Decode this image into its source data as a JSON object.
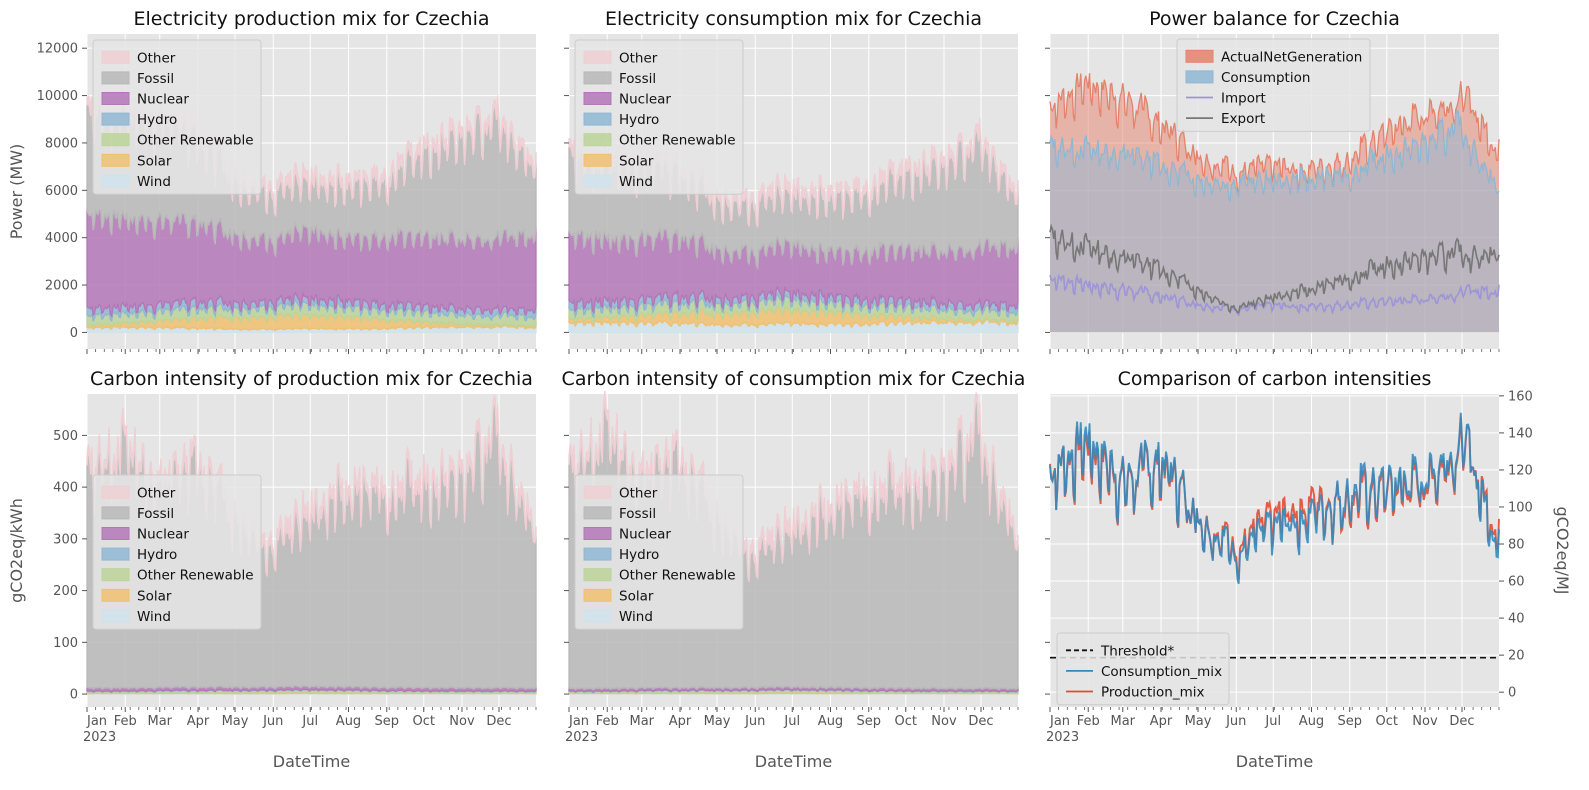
{
  "chart_data": [
    {
      "type": "area",
      "title": "Electricity production mix for Czechia",
      "xlabel": "",
      "ylabel": "Power (MW)",
      "ylim": [
        -700,
        12600
      ],
      "yticks": [
        0,
        2000,
        4000,
        6000,
        8000,
        10000,
        12000
      ],
      "grid": true,
      "legend_position": "top-left",
      "stacked": true,
      "x": [
        "2023-01",
        "2023-02",
        "2023-03",
        "2023-04",
        "2023-05",
        "2023-06",
        "2023-07",
        "2023-08",
        "2023-09",
        "2023-10",
        "2023-11",
        "2023-12",
        "2023-12-31"
      ],
      "legend": [
        "Other",
        "Fossil",
        "Nuclear",
        "Hydro",
        "Other Renewable",
        "Solar",
        "Wind"
      ],
      "series": [
        {
          "name": "Wind",
          "color": "#cfe3ec",
          "values": [
            200,
            220,
            200,
            170,
            150,
            140,
            150,
            160,
            170,
            210,
            230,
            240,
            220
          ]
        },
        {
          "name": "Solar",
          "color": "#f0c070",
          "values": [
            100,
            180,
            300,
            420,
            520,
            560,
            560,
            500,
            380,
            230,
            120,
            80,
            80
          ]
        },
        {
          "name": "Other Renewable",
          "color": "#bcd49a",
          "values": [
            400,
            400,
            400,
            400,
            400,
            400,
            400,
            400,
            400,
            400,
            400,
            400,
            400
          ]
        },
        {
          "name": "Hydro",
          "color": "#8fb7d3",
          "values": [
            300,
            280,
            280,
            280,
            250,
            250,
            250,
            250,
            250,
            250,
            250,
            250,
            300
          ]
        },
        {
          "name": "Nuclear",
          "color": "#b377b8",
          "values": [
            4000,
            3700,
            3500,
            3300,
            2900,
            2600,
            2800,
            2700,
            2850,
            2900,
            2950,
            3000,
            3200
          ]
        },
        {
          "name": "Fossil",
          "color": "#b8b8b8",
          "values": [
            4200,
            4300,
            4000,
            3400,
            2300,
            2000,
            2000,
            2100,
            2400,
            3500,
            4200,
            4800,
            2800
          ]
        },
        {
          "name": "Other",
          "color": "#efcfd3",
          "values": [
            300,
            300,
            300,
            300,
            300,
            300,
            300,
            300,
            300,
            300,
            300,
            300,
            300
          ]
        }
      ]
    },
    {
      "type": "area",
      "title": "Electricity consumption mix for Czechia",
      "xlabel": "",
      "ylabel": "",
      "ylim": [
        -700,
        12600
      ],
      "grid": true,
      "legend_position": "top-left",
      "stacked": true,
      "x": [
        "2023-01",
        "2023-02",
        "2023-03",
        "2023-04",
        "2023-05",
        "2023-06",
        "2023-07",
        "2023-08",
        "2023-09",
        "2023-10",
        "2023-11",
        "2023-12",
        "2023-12-31"
      ],
      "legend": [
        "Other",
        "Fossil",
        "Nuclear",
        "Hydro",
        "Other Renewable",
        "Solar",
        "Wind"
      ],
      "series": [
        {
          "name": "Wind",
          "color": "#cfe3ec",
          "values": [
            400,
            420,
            400,
            380,
            350,
            340,
            350,
            360,
            370,
            410,
            430,
            440,
            420
          ]
        },
        {
          "name": "Solar",
          "color": "#f0c070",
          "values": [
            150,
            220,
            320,
            420,
            520,
            560,
            560,
            500,
            380,
            250,
            150,
            100,
            100
          ]
        },
        {
          "name": "Other Renewable",
          "color": "#bcd49a",
          "values": [
            400,
            400,
            400,
            400,
            400,
            400,
            400,
            400,
            400,
            400,
            400,
            400,
            400
          ]
        },
        {
          "name": "Hydro",
          "color": "#8fb7d3",
          "values": [
            300,
            280,
            280,
            280,
            250,
            250,
            250,
            250,
            250,
            250,
            250,
            250,
            300
          ]
        },
        {
          "name": "Nuclear",
          "color": "#b377b8",
          "values": [
            2900,
            2600,
            2550,
            2500,
            2100,
            1900,
            2000,
            1900,
            2050,
            2150,
            2200,
            2400,
            2500
          ]
        },
        {
          "name": "Fossil",
          "color": "#b8b8b8",
          "values": [
            3350,
            3100,
            3000,
            2600,
            2100,
            2050,
            2100,
            2200,
            2500,
            3100,
            3500,
            4300,
            2100
          ]
        },
        {
          "name": "Other",
          "color": "#efcfd3",
          "values": [
            300,
            300,
            300,
            300,
            300,
            300,
            300,
            300,
            300,
            300,
            300,
            300,
            300
          ]
        }
      ]
    },
    {
      "type": "area",
      "title": "Power balance for Czechia",
      "xlabel": "",
      "ylabel": "",
      "ylim": [
        -700,
        12600
      ],
      "grid": true,
      "legend_position": "top-center",
      "x": [
        "2023-01",
        "2023-02",
        "2023-03",
        "2023-04",
        "2023-05",
        "2023-06",
        "2023-07",
        "2023-08",
        "2023-09",
        "2023-10",
        "2023-11",
        "2023-12",
        "2023-12-31"
      ],
      "legend": [
        "ActualNetGeneration",
        "Consumption",
        "Import",
        "Export"
      ],
      "series": [
        {
          "name": "ActualNetGeneration",
          "color": "#e5826b",
          "kind": "area",
          "values": [
            9500,
            10500,
            9800,
            8700,
            7500,
            6800,
            6900,
            6900,
            7300,
            8400,
            9200,
            10000,
            7700
          ]
        },
        {
          "name": "Consumption",
          "color": "#8fb7d3",
          "kind": "area",
          "values": [
            7800,
            7700,
            7500,
            7000,
            6500,
            6300,
            6400,
            6400,
            6700,
            7400,
            7900,
            8600,
            6000
          ]
        },
        {
          "name": "Import",
          "color": "#9d95d8",
          "kind": "line",
          "values": [
            2300,
            2000,
            1800,
            1500,
            1200,
            1000,
            1100,
            1100,
            1200,
            1300,
            1400,
            1700,
            1800
          ]
        },
        {
          "name": "Export",
          "color": "#777777",
          "kind": "line",
          "values": [
            4000,
            3600,
            3100,
            2600,
            1800,
            1000,
            1500,
            1800,
            2300,
            2800,
            3100,
            3300,
            3300
          ]
        }
      ]
    },
    {
      "type": "area",
      "title": "Carbon intensity of production mix for Czechia",
      "xlabel": "DateTime",
      "ylabel": "gCO2eq/kWh",
      "ylim": [
        -25,
        580
      ],
      "yticks": [
        0,
        100,
        200,
        300,
        400,
        500
      ],
      "grid": true,
      "legend_position": "center-left",
      "stacked": true,
      "x": [
        "2023-01",
        "2023-02",
        "2023-03",
        "2023-04",
        "2023-05",
        "2023-06",
        "2023-07",
        "2023-08",
        "2023-09",
        "2023-10",
        "2023-11",
        "2023-12",
        "2023-12-31"
      ],
      "x_tick_labels": [
        "Jan",
        "Feb",
        "Mar",
        "Apr",
        "May",
        "Jun",
        "Jul",
        "Aug",
        "Sep",
        "Oct",
        "Nov",
        "Dec"
      ],
      "x_tick_sublabel": "2023",
      "legend": [
        "Other",
        "Fossil",
        "Nuclear",
        "Hydro",
        "Other Renewable",
        "Solar",
        "Wind"
      ],
      "series": [
        {
          "name": "Wind",
          "color": "#cfe3ec",
          "values": [
            1,
            1,
            1,
            1,
            1,
            1,
            1,
            1,
            1,
            1,
            1,
            1,
            1
          ]
        },
        {
          "name": "Solar",
          "color": "#f0c070",
          "values": [
            1,
            1,
            2,
            2,
            3,
            3,
            3,
            3,
            2,
            1,
            1,
            1,
            1
          ]
        },
        {
          "name": "Other Renewable",
          "color": "#bcd49a",
          "values": [
            3,
            3,
            3,
            3,
            3,
            3,
            3,
            3,
            3,
            3,
            3,
            3,
            3
          ]
        },
        {
          "name": "Hydro",
          "color": "#8fb7d3",
          "values": [
            1,
            1,
            1,
            1,
            1,
            1,
            1,
            1,
            1,
            1,
            1,
            1,
            1
          ]
        },
        {
          "name": "Nuclear",
          "color": "#b377b8",
          "values": [
            6,
            6,
            6,
            6,
            6,
            6,
            6,
            6,
            6,
            6,
            6,
            6,
            6
          ]
        },
        {
          "name": "Fossil",
          "color": "#b8b8b8",
          "values": [
            408,
            460,
            380,
            420,
            330,
            270,
            330,
            365,
            375,
            385,
            395,
            475,
            295
          ]
        },
        {
          "name": "Other",
          "color": "#efcfd3",
          "values": [
            15,
            15,
            15,
            15,
            15,
            15,
            15,
            15,
            15,
            15,
            15,
            15,
            15
          ]
        }
      ]
    },
    {
      "type": "area",
      "title": "Carbon intensity of consumption mix for Czechia",
      "xlabel": "DateTime",
      "ylabel": "",
      "ylim": [
        -25,
        580
      ],
      "grid": true,
      "legend_position": "center-left",
      "stacked": true,
      "x": [
        "2023-01",
        "2023-02",
        "2023-03",
        "2023-04",
        "2023-05",
        "2023-06",
        "2023-07",
        "2023-08",
        "2023-09",
        "2023-10",
        "2023-11",
        "2023-12",
        "2023-12-31"
      ],
      "x_tick_labels": [
        "Jan",
        "Feb",
        "Mar",
        "Apr",
        "May",
        "Jun",
        "Jul",
        "Aug",
        "Sep",
        "Oct",
        "Nov",
        "Dec"
      ],
      "x_tick_sublabel": "2023",
      "legend": [
        "Other",
        "Fossil",
        "Nuclear",
        "Hydro",
        "Other Renewable",
        "Solar",
        "Wind"
      ],
      "series": [
        {
          "name": "Wind",
          "color": "#cfe3ec",
          "values": [
            1,
            1,
            1,
            1,
            1,
            1,
            1,
            1,
            1,
            1,
            1,
            1,
            1
          ]
        },
        {
          "name": "Solar",
          "color": "#f0c070",
          "values": [
            1,
            1,
            2,
            2,
            3,
            3,
            3,
            3,
            2,
            1,
            1,
            1,
            1
          ]
        },
        {
          "name": "Other Renewable",
          "color": "#bcd49a",
          "values": [
            3,
            3,
            3,
            3,
            3,
            3,
            3,
            3,
            3,
            3,
            3,
            3,
            3
          ]
        },
        {
          "name": "Hydro",
          "color": "#8fb7d3",
          "values": [
            1,
            1,
            1,
            1,
            1,
            1,
            1,
            1,
            1,
            1,
            1,
            1,
            1
          ]
        },
        {
          "name": "Nuclear",
          "color": "#b377b8",
          "values": [
            5,
            5,
            5,
            5,
            5,
            5,
            5,
            5,
            5,
            5,
            5,
            5,
            5
          ]
        },
        {
          "name": "Fossil",
          "color": "#b8b8b8",
          "values": [
            410,
            490,
            395,
            430,
            330,
            255,
            300,
            330,
            375,
            380,
            400,
            480,
            280
          ]
        },
        {
          "name": "Other",
          "color": "#efcfd3",
          "values": [
            15,
            15,
            15,
            15,
            15,
            15,
            15,
            15,
            15,
            15,
            15,
            15,
            15
          ]
        }
      ]
    },
    {
      "type": "line",
      "title": "Comparison of carbon intensities",
      "xlabel": "DateTime",
      "ylabel_right": "gCO2eq/MJ",
      "ylim": [
        -8,
        161
      ],
      "yticks_right": [
        0,
        20,
        40,
        60,
        80,
        100,
        120,
        140,
        160
      ],
      "grid": true,
      "legend_position": "bottom-left",
      "x": [
        "2023-01",
        "2023-02",
        "2023-03",
        "2023-04",
        "2023-05",
        "2023-06",
        "2023-07",
        "2023-08",
        "2023-09",
        "2023-10",
        "2023-11",
        "2023-12",
        "2023-12-31"
      ],
      "x_tick_labels": [
        "Jan",
        "Feb",
        "Mar",
        "Apr",
        "May",
        "Jun",
        "Jul",
        "Aug",
        "Sep",
        "Oct",
        "Nov",
        "Dec"
      ],
      "x_tick_sublabel": "2023",
      "legend": [
        "Threshold*",
        "Consumption_mix",
        "Production_mix"
      ],
      "series": [
        {
          "name": "Threshold*",
          "color": "#111111",
          "dashed": true,
          "values": [
            18.6,
            18.6,
            18.6,
            18.6,
            18.6,
            18.6,
            18.6,
            18.6,
            18.6,
            18.6,
            18.6,
            18.6,
            18.6
          ]
        },
        {
          "name": "Production_mix",
          "color": "#e24a33",
          "values": [
            118,
            132,
            112,
            122,
            95,
            78,
            92,
            102,
            104,
            108,
            112,
            135,
            85
          ]
        },
        {
          "name": "Consumption_mix",
          "color": "#348abd",
          "values": [
            117,
            136,
            113,
            124,
            95,
            75,
            87,
            96,
            108,
            110,
            115,
            137,
            80
          ]
        }
      ]
    }
  ]
}
